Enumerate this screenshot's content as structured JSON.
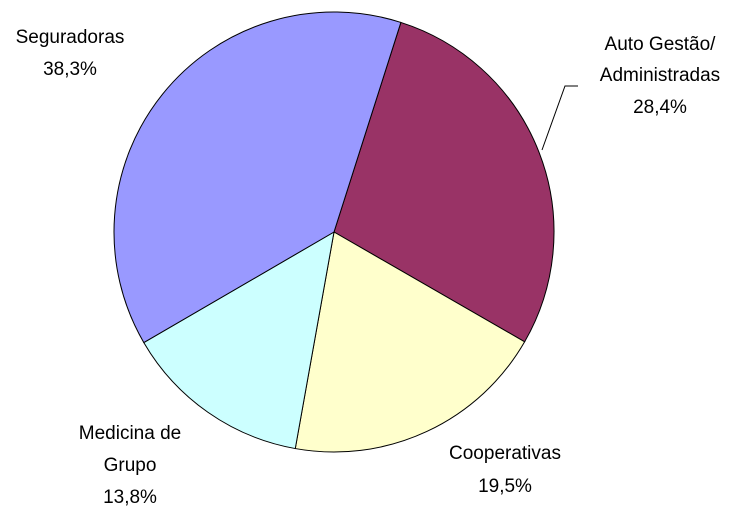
{
  "chart_data": {
    "type": "pie",
    "categories": [
      [
        "Auto Gestão/",
        "Administradas"
      ],
      [
        "Cooperativas"
      ],
      [
        "Medicina de",
        "Grupo"
      ],
      [
        "Seguradoras"
      ]
    ],
    "values": [
      28.4,
      19.5,
      13.8,
      38.3
    ],
    "value_labels": [
      "28,4%",
      "19,5%",
      "13,8%",
      "38,3%"
    ],
    "colors": [
      "#993366",
      "#ffffcc",
      "#ccffff",
      "#9999ff"
    ]
  }
}
